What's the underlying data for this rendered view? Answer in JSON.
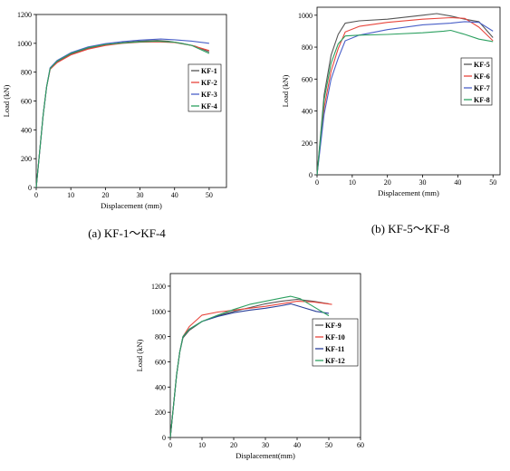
{
  "chart_data": [
    {
      "type": "line",
      "caption": "(a) KF-1～KF-4",
      "xlabel": "Displacement (mm)",
      "ylabel": "Load (kN)",
      "xlim": [
        0,
        55
      ],
      "ylim": [
        0,
        1200
      ],
      "xticks": [
        0,
        10,
        20,
        30,
        40,
        50
      ],
      "yticks": [
        0,
        200,
        400,
        600,
        800,
        1000,
        1200
      ],
      "legend_position": "right",
      "series": [
        {
          "name": "KF-1",
          "color": "#555555",
          "points": [
            [
              0,
              0
            ],
            [
              1,
              250
            ],
            [
              2,
              500
            ],
            [
              3,
              700
            ],
            [
              4,
              820
            ],
            [
              6,
              870
            ],
            [
              10,
              925
            ],
            [
              15,
              965
            ],
            [
              20,
              990
            ],
            [
              25,
              1005
            ],
            [
              30,
              1015
            ],
            [
              35,
              1020
            ],
            [
              38,
              1015
            ],
            [
              42,
              1000
            ],
            [
              46,
              980
            ],
            [
              50,
              940
            ]
          ]
        },
        {
          "name": "KF-2",
          "color": "#e8453c",
          "points": [
            [
              0,
              0
            ],
            [
              1,
              250
            ],
            [
              2,
              500
            ],
            [
              3,
              700
            ],
            [
              4,
              820
            ],
            [
              6,
              865
            ],
            [
              10,
              920
            ],
            [
              15,
              960
            ],
            [
              20,
              985
            ],
            [
              25,
              1000
            ],
            [
              30,
              1008
            ],
            [
              35,
              1010
            ],
            [
              40,
              1005
            ],
            [
              45,
              985
            ],
            [
              50,
              950
            ]
          ]
        },
        {
          "name": "KF-3",
          "color": "#4a60c8",
          "points": [
            [
              0,
              0
            ],
            [
              1,
              250
            ],
            [
              2,
              500
            ],
            [
              3,
              700
            ],
            [
              4,
              830
            ],
            [
              6,
              880
            ],
            [
              10,
              935
            ],
            [
              15,
              975
            ],
            [
              20,
              998
            ],
            [
              25,
              1012
            ],
            [
              30,
              1022
            ],
            [
              36,
              1030
            ],
            [
              40,
              1025
            ],
            [
              45,
              1015
            ],
            [
              50,
              1000
            ]
          ]
        },
        {
          "name": "KF-4",
          "color": "#2ca060",
          "points": [
            [
              0,
              0
            ],
            [
              1,
              250
            ],
            [
              2,
              500
            ],
            [
              3,
              700
            ],
            [
              4,
              825
            ],
            [
              6,
              875
            ],
            [
              10,
              930
            ],
            [
              15,
              970
            ],
            [
              20,
              992
            ],
            [
              25,
              1003
            ],
            [
              30,
              1010
            ],
            [
              35,
              1015
            ],
            [
              40,
              1008
            ],
            [
              45,
              985
            ],
            [
              50,
              930
            ]
          ]
        }
      ]
    },
    {
      "type": "line",
      "caption": "(b) KF-5～KF-8",
      "xlabel": "Displacement (mm)",
      "ylabel": "Load (kN)",
      "xlim": [
        0,
        52
      ],
      "ylim": [
        0,
        1050
      ],
      "xticks": [
        0,
        10,
        20,
        30,
        40,
        50
      ],
      "yticks": [
        0,
        200,
        400,
        600,
        800,
        1000
      ],
      "legend_position": "right",
      "series": [
        {
          "name": "KF-5",
          "color": "#555555",
          "points": [
            [
              0,
              0
            ],
            [
              2,
              500
            ],
            [
              4,
              750
            ],
            [
              6,
              880
            ],
            [
              8,
              950
            ],
            [
              12,
              965
            ],
            [
              20,
              975
            ],
            [
              30,
              1000
            ],
            [
              34,
              1010
            ],
            [
              38,
              995
            ],
            [
              42,
              975
            ],
            [
              46,
              960
            ],
            [
              50,
              860
            ]
          ]
        },
        {
          "name": "KF-6",
          "color": "#e8453c",
          "points": [
            [
              0,
              0
            ],
            [
              2,
              420
            ],
            [
              4,
              650
            ],
            [
              6,
              790
            ],
            [
              8,
              895
            ],
            [
              12,
              930
            ],
            [
              20,
              955
            ],
            [
              30,
              975
            ],
            [
              38,
              985
            ],
            [
              42,
              980
            ],
            [
              46,
              925
            ],
            [
              50,
              840
            ]
          ]
        },
        {
          "name": "KF-7",
          "color": "#4a60c8",
          "points": [
            [
              0,
              0
            ],
            [
              2,
              380
            ],
            [
              4,
              600
            ],
            [
              6,
              730
            ],
            [
              8,
              840
            ],
            [
              12,
              875
            ],
            [
              20,
              910
            ],
            [
              30,
              940
            ],
            [
              38,
              950
            ],
            [
              42,
              960
            ],
            [
              46,
              955
            ],
            [
              50,
              900
            ]
          ]
        },
        {
          "name": "KF-8",
          "color": "#2ca060",
          "points": [
            [
              0,
              0
            ],
            [
              2,
              470
            ],
            [
              4,
              700
            ],
            [
              6,
              820
            ],
            [
              8,
              870
            ],
            [
              12,
              875
            ],
            [
              20,
              880
            ],
            [
              30,
              890
            ],
            [
              36,
              900
            ],
            [
              38,
              905
            ],
            [
              42,
              880
            ],
            [
              46,
              850
            ],
            [
              50,
              835
            ]
          ]
        }
      ]
    },
    {
      "type": "line",
      "caption": "",
      "xlabel": "Displacement(mm)",
      "ylabel": "Load (kN)",
      "xlim": [
        0,
        60
      ],
      "ylim": [
        0,
        1300
      ],
      "xticks": [
        0,
        10,
        20,
        30,
        40,
        50,
        60
      ],
      "yticks": [
        0,
        200,
        400,
        600,
        800,
        1000,
        1200
      ],
      "legend_position": "right",
      "series": [
        {
          "name": "KF-9",
          "color": "#555555",
          "points": [
            [
              0,
              0
            ],
            [
              1,
              250
            ],
            [
              2,
              500
            ],
            [
              3,
              680
            ],
            [
              4,
              790
            ],
            [
              6,
              850
            ],
            [
              10,
              920
            ],
            [
              15,
              965
            ],
            [
              20,
              1000
            ],
            [
              25,
              1030
            ],
            [
              30,
              1060
            ],
            [
              35,
              1080
            ],
            [
              40,
              1095
            ],
            [
              45,
              1080
            ],
            [
              50,
              1060
            ]
          ]
        },
        {
          "name": "KF-10",
          "color": "#e8453c",
          "points": [
            [
              0,
              0
            ],
            [
              1,
              250
            ],
            [
              2,
              500
            ],
            [
              3,
              680
            ],
            [
              4,
              800
            ],
            [
              6,
              880
            ],
            [
              10,
              970
            ],
            [
              15,
              995
            ],
            [
              20,
              1010
            ],
            [
              25,
              1025
            ],
            [
              30,
              1040
            ],
            [
              35,
              1060
            ],
            [
              40,
              1080
            ],
            [
              45,
              1075
            ],
            [
              51,
              1055
            ]
          ]
        },
        {
          "name": "KF-11",
          "color": "#2a3f9a",
          "points": [
            [
              0,
              0
            ],
            [
              1,
              250
            ],
            [
              2,
              500
            ],
            [
              3,
              680
            ],
            [
              4,
              800
            ],
            [
              6,
              860
            ],
            [
              10,
              920
            ],
            [
              15,
              960
            ],
            [
              20,
              990
            ],
            [
              25,
              1010
            ],
            [
              30,
              1025
            ],
            [
              35,
              1045
            ],
            [
              38,
              1060
            ],
            [
              42,
              1030
            ],
            [
              46,
              1000
            ],
            [
              50,
              985
            ]
          ]
        },
        {
          "name": "KF-12",
          "color": "#2ca060",
          "points": [
            [
              0,
              0
            ],
            [
              1,
              250
            ],
            [
              2,
              500
            ],
            [
              3,
              680
            ],
            [
              4,
              800
            ],
            [
              6,
              860
            ],
            [
              10,
              920
            ],
            [
              15,
              970
            ],
            [
              20,
              1015
            ],
            [
              25,
              1055
            ],
            [
              30,
              1080
            ],
            [
              35,
              1105
            ],
            [
              38,
              1120
            ],
            [
              41,
              1100
            ],
            [
              45,
              1040
            ],
            [
              50,
              965
            ]
          ]
        }
      ]
    }
  ]
}
